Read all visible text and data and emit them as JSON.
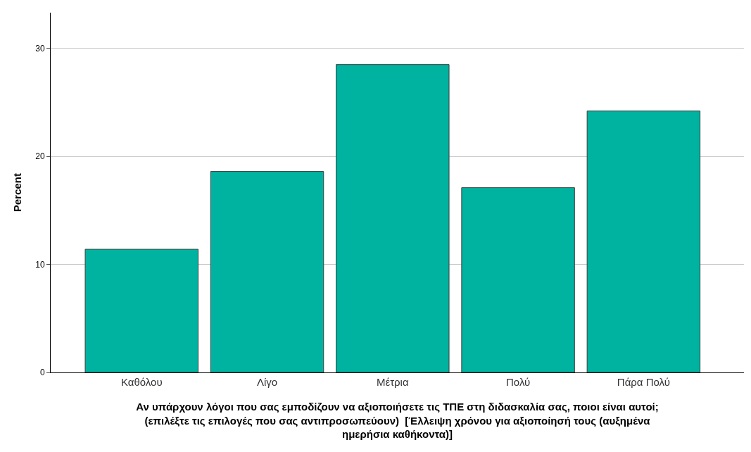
{
  "chart_data": {
    "type": "bar",
    "xlabel": "Αν υπάρχουν λόγοι που σας εμποδίζουν να αξιοποιήσετε τις ΤΠΕ στη διδασκαλία σας, ποιοι είναι αυτοί; (επιλέξτε τις επιλογές που σας αντιπροσωπεύουν)  [Έλλειψη χρόνου για αξιοποίησή τους (αυξημένα ημερήσια καθήκοντα)]",
    "ylabel": "Percent",
    "categories": [
      "Καθόλου",
      "Λίγο",
      "Μέτρια",
      "Πολύ",
      "Πάρα Πολύ"
    ],
    "values": [
      11.4,
      18.6,
      28.5,
      17.1,
      24.2
    ],
    "color": "#00b2a0",
    "ylim": [
      0,
      33.3
    ],
    "yticks": [
      0,
      10,
      20,
      30
    ],
    "grid": "y"
  }
}
